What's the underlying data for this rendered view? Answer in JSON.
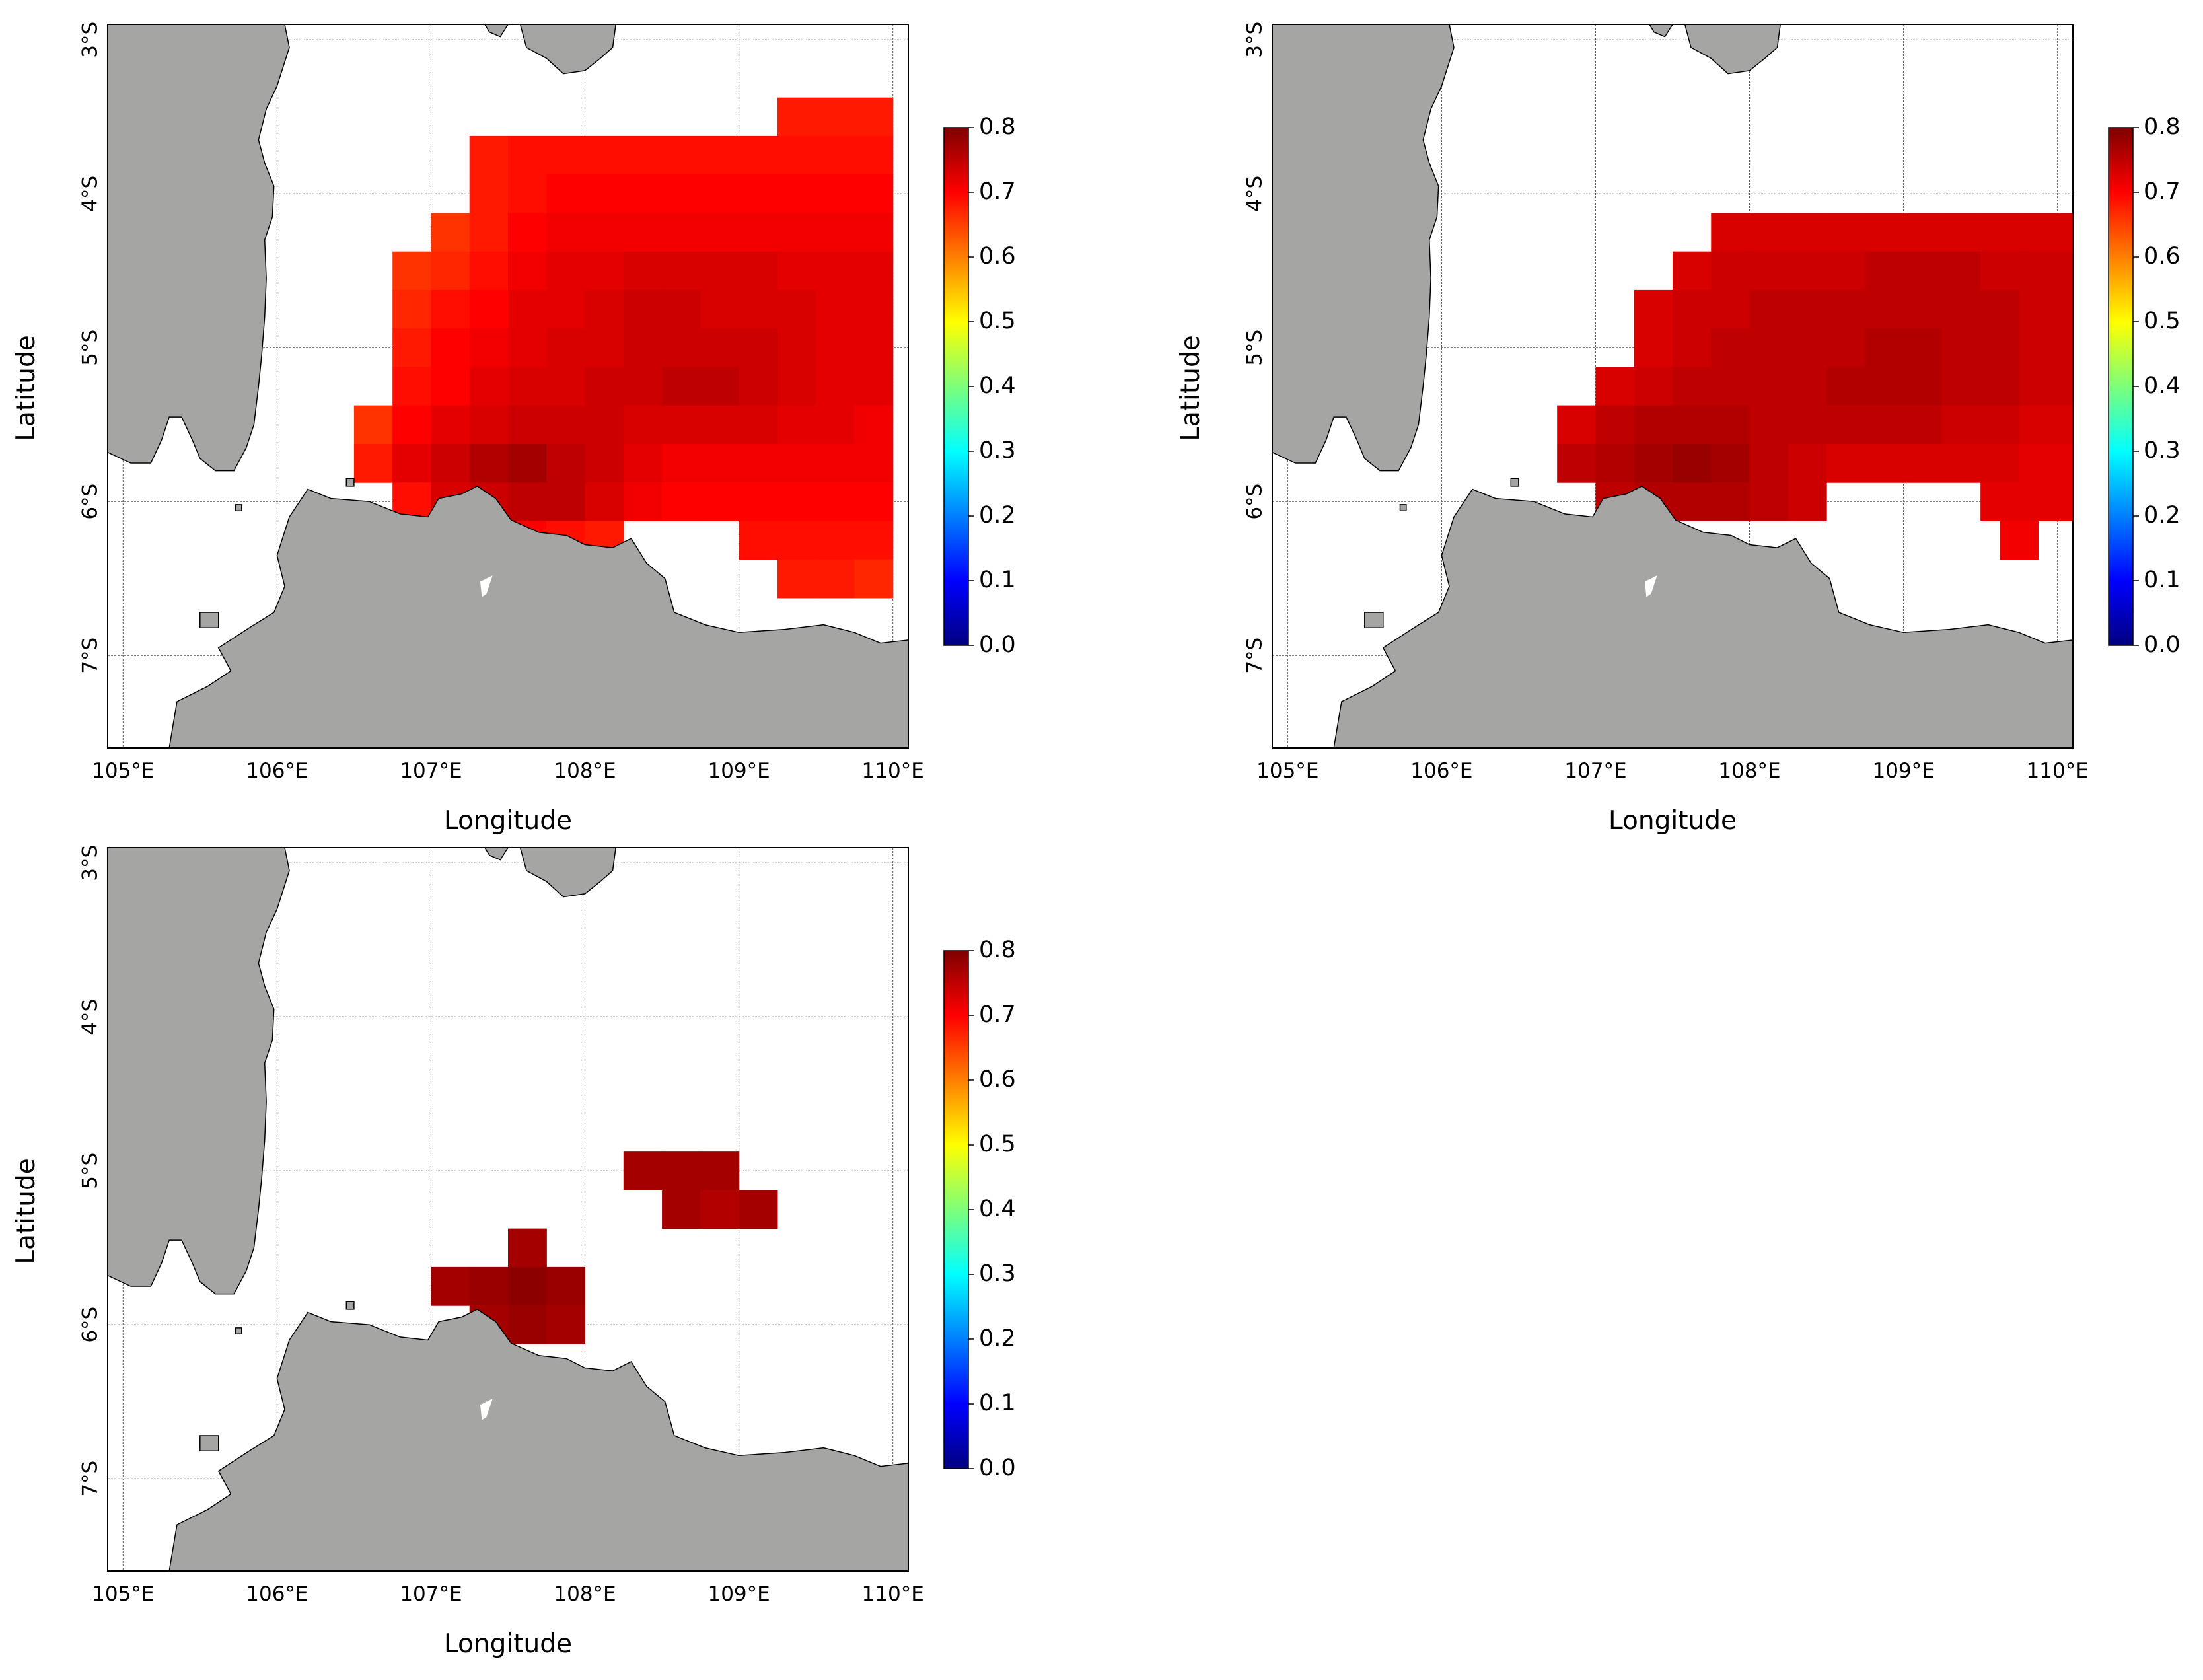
{
  "figure": {
    "land_color": "#a5a6a4",
    "sea_color": "#ffffff",
    "colormap": "jet",
    "colormap_stops": [
      "#00007f",
      "#0000ff",
      "#007fff",
      "#00ffff",
      "#7dff7a",
      "#ffff00",
      "#ff7f00",
      "#ff0000",
      "#7f0000"
    ],
    "colorbar": {
      "min": 0.0,
      "max": 0.8,
      "ticks": [
        "0.0",
        "0.1",
        "0.2",
        "0.3",
        "0.4",
        "0.5",
        "0.6",
        "0.7",
        "0.8"
      ]
    },
    "axes": {
      "xlabel": "Longitude",
      "ylabel": "Latitude",
      "lon_range": [
        104.9,
        110.1
      ],
      "lat_range": [
        -7.6,
        -2.9
      ],
      "x_ticks": [
        {
          "lon": 105,
          "label": "105°E"
        },
        {
          "lon": 106,
          "label": "106°E"
        },
        {
          "lon": 107,
          "label": "107°E"
        },
        {
          "lon": 108,
          "label": "108°E"
        },
        {
          "lon": 109,
          "label": "109°E"
        },
        {
          "lon": 110,
          "label": "110°E"
        }
      ],
      "y_ticks": [
        {
          "lat": -3,
          "label": "3°S"
        },
        {
          "lat": -4,
          "label": "4°S"
        },
        {
          "lat": -5,
          "label": "5°S"
        },
        {
          "lat": -6,
          "label": "6°S"
        },
        {
          "lat": -7,
          "label": "7°S"
        }
      ],
      "gridlines": true
    }
  },
  "chart_data": [
    {
      "type": "heatmap",
      "cell_size_deg": 0.25,
      "value_range": [
        0.0,
        0.8
      ],
      "rows": [
        {
          "lat": -3.5,
          "lon0": 109.375,
          "values": [
            0.68,
            0.68,
            0.68
          ]
        },
        {
          "lat": -3.75,
          "lon0": 107.375,
          "values": [
            0.68,
            0.69,
            0.69,
            0.69,
            0.69,
            0.69,
            0.69,
            0.69,
            0.69,
            0.69,
            0.69
          ]
        },
        {
          "lat": -4.0,
          "lon0": 107.375,
          "values": [
            0.68,
            0.69,
            0.7,
            0.7,
            0.7,
            0.7,
            0.7,
            0.7,
            0.7,
            0.7,
            0.7
          ]
        },
        {
          "lat": -4.25,
          "lon0": 107.125,
          "values": [
            0.66,
            0.68,
            0.7,
            0.71,
            0.71,
            0.71,
            0.71,
            0.71,
            0.71,
            0.71,
            0.71,
            0.71
          ]
        },
        {
          "lat": -4.5,
          "lon0": 106.875,
          "values": [
            0.66,
            0.67,
            0.69,
            0.71,
            0.72,
            0.72,
            0.73,
            0.73,
            0.73,
            0.73,
            0.72,
            0.72,
            0.72
          ]
        },
        {
          "lat": -4.75,
          "lon0": 106.875,
          "values": [
            0.67,
            0.69,
            0.7,
            0.72,
            0.72,
            0.73,
            0.74,
            0.74,
            0.73,
            0.73,
            0.73,
            0.72,
            0.72
          ]
        },
        {
          "lat": -5.0,
          "lon0": 106.875,
          "values": [
            0.68,
            0.7,
            0.71,
            0.72,
            0.73,
            0.73,
            0.74,
            0.74,
            0.74,
            0.74,
            0.73,
            0.72,
            0.72
          ]
        },
        {
          "lat": -5.25,
          "lon0": 106.875,
          "values": [
            0.69,
            0.7,
            0.72,
            0.73,
            0.73,
            0.74,
            0.74,
            0.75,
            0.75,
            0.74,
            0.73,
            0.72,
            0.72
          ]
        },
        {
          "lat": -5.5,
          "lon0": 106.625,
          "values": [
            0.66,
            0.7,
            0.72,
            0.73,
            0.74,
            0.74,
            0.74,
            0.73,
            0.73,
            0.73,
            0.73,
            0.72,
            0.72,
            0.71
          ]
        },
        {
          "lat": -5.75,
          "lon0": 106.625,
          "values": [
            0.68,
            0.72,
            0.74,
            0.76,
            0.77,
            0.75,
            0.74,
            0.72,
            0.71,
            0.71,
            0.71,
            0.71,
            0.71,
            0.71
          ]
        },
        {
          "lat": -6.0,
          "lon0": 106.875,
          "values": [
            0.69,
            0.73,
            0.74,
            0.75,
            0.75,
            0.73,
            0.71,
            0.7,
            0.7,
            0.7,
            0.7,
            0.7,
            0.7
          ]
        },
        {
          "lat": -6.25,
          "lon0": 107.375,
          "values": [
            0.69,
            0.7,
            0.69,
            0.68
          ]
        },
        {
          "lat": -6.25,
          "lon0": 109.125,
          "values": [
            0.69,
            0.69,
            0.69,
            0.69
          ]
        },
        {
          "lat": -6.5,
          "lon0": 109.375,
          "values": [
            0.68,
            0.68,
            0.67
          ]
        }
      ]
    },
    {
      "type": "heatmap",
      "cell_size_deg": 0.25,
      "value_range": [
        0.0,
        0.8
      ],
      "rows": [
        {
          "lat": -4.25,
          "lon0": 107.875,
          "values": [
            0.73,
            0.73,
            0.73,
            0.73,
            0.73,
            0.73,
            0.73,
            0.73,
            0.73,
            0.73
          ]
        },
        {
          "lat": -4.5,
          "lon0": 107.625,
          "values": [
            0.73,
            0.74,
            0.74,
            0.74,
            0.74,
            0.75,
            0.75,
            0.75,
            0.74,
            0.74,
            0.74
          ]
        },
        {
          "lat": -4.75,
          "lon0": 107.375,
          "values": [
            0.73,
            0.74,
            0.74,
            0.75,
            0.75,
            0.75,
            0.75,
            0.75,
            0.75,
            0.75,
            0.74,
            0.74
          ]
        },
        {
          "lat": -5.0,
          "lon0": 107.375,
          "values": [
            0.73,
            0.74,
            0.75,
            0.75,
            0.75,
            0.75,
            0.76,
            0.76,
            0.75,
            0.75,
            0.74,
            0.74
          ]
        },
        {
          "lat": -5.25,
          "lon0": 107.125,
          "values": [
            0.73,
            0.74,
            0.75,
            0.75,
            0.75,
            0.75,
            0.76,
            0.76,
            0.76,
            0.75,
            0.75,
            0.74,
            0.74
          ]
        },
        {
          "lat": -5.5,
          "lon0": 106.875,
          "values": [
            0.73,
            0.75,
            0.76,
            0.76,
            0.76,
            0.75,
            0.75,
            0.75,
            0.75,
            0.75,
            0.74,
            0.74,
            0.73,
            0.73
          ]
        },
        {
          "lat": -5.75,
          "lon0": 106.875,
          "values": [
            0.75,
            0.76,
            0.77,
            0.78,
            0.77,
            0.75,
            0.74,
            0.73,
            0.73,
            0.73,
            0.73,
            0.73,
            0.72,
            0.72
          ]
        },
        {
          "lat": -6.0,
          "lon0": 107.125,
          "values": [
            0.75,
            0.76,
            0.76,
            0.76,
            0.75,
            0.74
          ]
        },
        {
          "lat": -6.0,
          "lon0": 109.625,
          "values": [
            0.72,
            0.72,
            0.72
          ]
        },
        {
          "lat": -6.25,
          "lon0": 109.75,
          "values": [
            0.71
          ]
        }
      ]
    },
    {
      "type": "heatmap",
      "cell_size_deg": 0.25,
      "value_range": [
        0.0,
        0.8
      ],
      "rows": [
        {
          "lat": -5.0,
          "lon0": 108.375,
          "values": [
            0.77,
            0.77,
            0.77
          ]
        },
        {
          "lat": -5.25,
          "lon0": 108.625,
          "values": [
            0.77,
            0.76,
            0.77
          ]
        },
        {
          "lat": -5.5,
          "lon0": 107.625,
          "values": [
            0.77
          ]
        },
        {
          "lat": -5.75,
          "lon0": 107.125,
          "values": [
            0.77,
            0.78,
            0.79,
            0.78
          ]
        },
        {
          "lat": -6.0,
          "lon0": 107.375,
          "values": [
            0.77,
            0.78,
            0.77
          ]
        }
      ]
    }
  ]
}
